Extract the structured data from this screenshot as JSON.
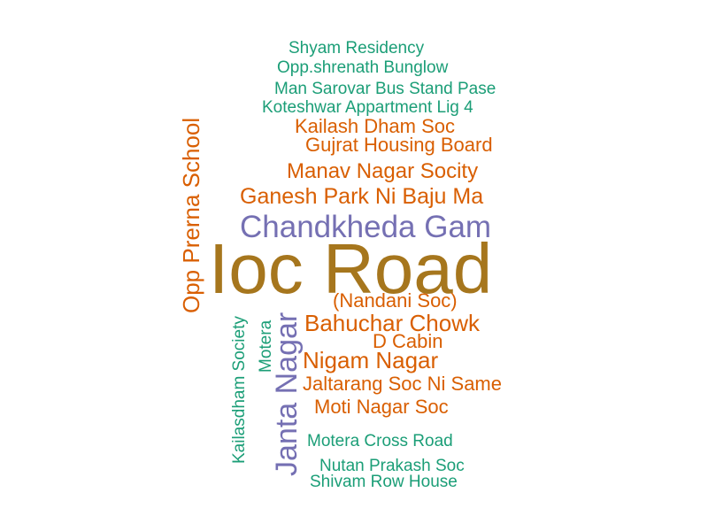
{
  "colors": {
    "teal": "#1b9e77",
    "orange": "#d95f02",
    "purple": "#7570b3",
    "olive": "#a6761d"
  },
  "words": {
    "w01": "Shyam Residency",
    "w02": "Opp.shrenath Bunglow",
    "w03": "Man Sarovar Bus Stand Pase",
    "w04": "Koteshwar Appartment Lig 4",
    "w05": "Kailash Dham Soc",
    "w06": "Gujrat Housing Board",
    "w07": "Manav Nagar Socity",
    "w08": "Ganesh Park Ni Baju Ma",
    "w09": "Chandkheda Gam",
    "w10": "Ioc Road",
    "w11": "(Nandani Soc)",
    "w12": "Bahuchar Chowk",
    "w13": "D Cabin",
    "w14": "Nigam Nagar",
    "w15": "Jaltarang Soc Ni Same",
    "w16": "Moti Nagar Soc",
    "w17": "Motera Cross Road",
    "w18": "Nutan Prakash Soc",
    "w19": "Shivam Row House",
    "w20": "Opp Prerna School",
    "w21": "Kailasdham Society",
    "w22": "Motera",
    "w23": "Janta Nagar"
  }
}
